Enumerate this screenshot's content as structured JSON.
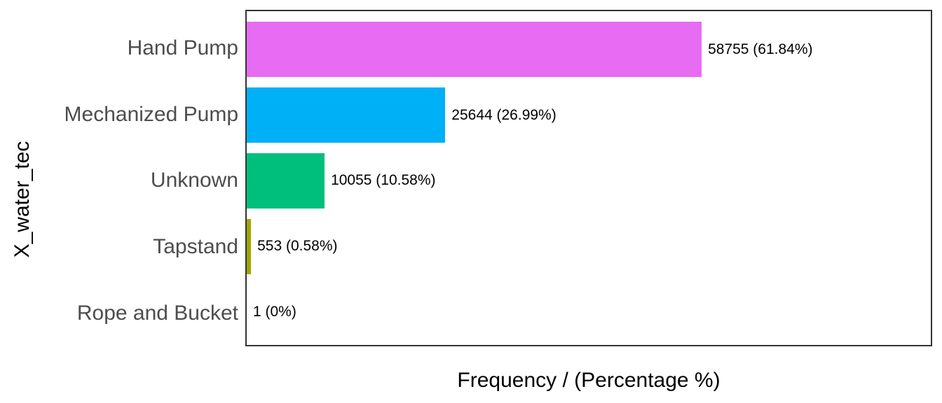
{
  "figure": {
    "y_axis_title": "X_water_tec",
    "x_axis_title": "Frequency / (Percentage %)"
  },
  "colors": {
    "background": "#ffffff",
    "panel_border": "#333333",
    "axis_tick_text": "#4d4d4d",
    "axis_title_text": "#000000",
    "value_label_text": "#000000"
  },
  "chart_data": {
    "type": "bar",
    "orientation": "horizontal",
    "title": "",
    "xlabel": "Frequency / (Percentage %)",
    "ylabel": "X_water_tec",
    "categories": [
      "Hand Pump",
      "Mechanized Pump",
      "Unknown",
      "Tapstand",
      "Rope and Bucket"
    ],
    "values": [
      58755,
      25644,
      10055,
      553,
      1
    ],
    "percentages": [
      61.84,
      26.99,
      10.58,
      0.58,
      0
    ],
    "bar_labels": [
      "58755 (61.84%)",
      "25644 (26.99%)",
      "10055 (10.58%)",
      "553 (0.58%)",
      "1 (0%)"
    ],
    "bar_colors": [
      "#e76bf3",
      "#00b0f6",
      "#00bf7d",
      "#a3a500",
      "#f8766d"
    ],
    "xlim": [
      0,
      88350
    ],
    "grid": false,
    "legend": false
  }
}
